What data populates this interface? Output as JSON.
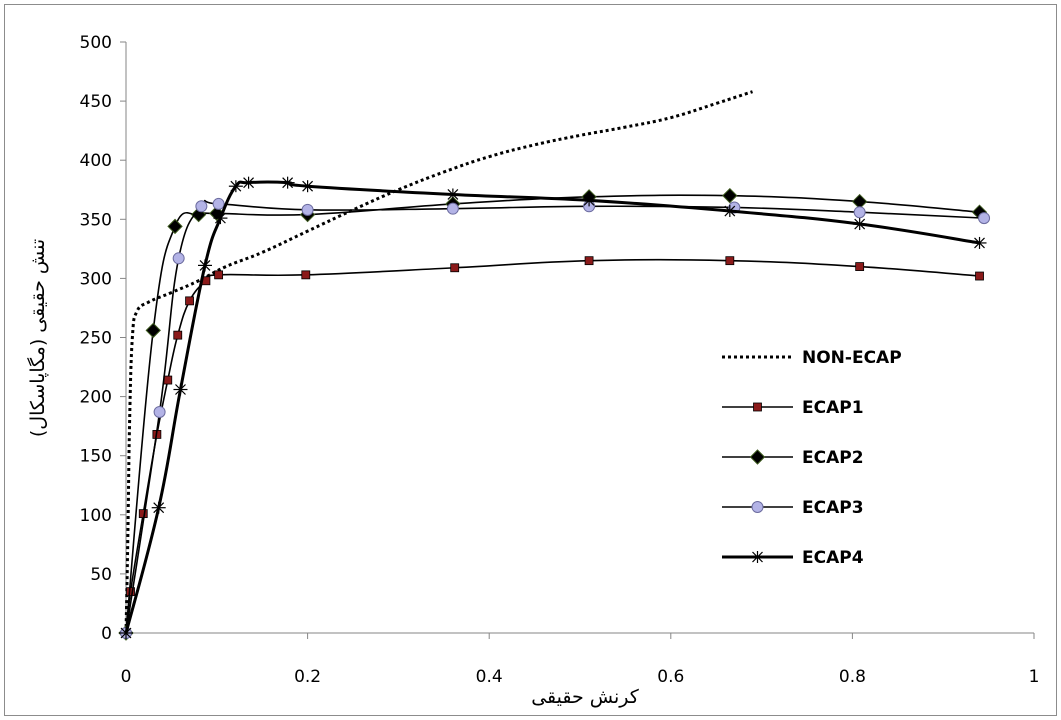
{
  "chart_data": {
    "type": "line",
    "title": "",
    "xlabel": "کرنش حقیقی",
    "ylabel": "تنش حقیقی (مگاپاسکال)",
    "xlim": [
      0,
      1
    ],
    "ylim": [
      0,
      500
    ],
    "xticks": [
      "0",
      "0.2",
      "0.4",
      "0.6",
      "0.8",
      "1"
    ],
    "yticks": [
      "0",
      "50",
      "100",
      "150",
      "200",
      "250",
      "300",
      "350",
      "400",
      "450",
      "500"
    ],
    "grid": false,
    "legend_position": "right",
    "series": [
      {
        "name": "NON-ECAP",
        "color": "#000000",
        "marker": "none",
        "line": "dotted",
        "points": [
          [
            0,
            0
          ],
          [
            0.002,
            80
          ],
          [
            0.004,
            180
          ],
          [
            0.007,
            250
          ],
          [
            0.012,
            272
          ],
          [
            0.025,
            280
          ],
          [
            0.05,
            288
          ],
          [
            0.08,
            298
          ],
          [
            0.11,
            310
          ],
          [
            0.15,
            322
          ],
          [
            0.2,
            340
          ],
          [
            0.25,
            358
          ],
          [
            0.3,
            375
          ],
          [
            0.35,
            390
          ],
          [
            0.4,
            403
          ],
          [
            0.45,
            413
          ],
          [
            0.5,
            421
          ],
          [
            0.55,
            428
          ],
          [
            0.6,
            436
          ],
          [
            0.65,
            448
          ],
          [
            0.69,
            458
          ]
        ]
      },
      {
        "name": "ECAP1",
        "color": "#8b1a1a",
        "marker": "square",
        "line": "solid",
        "points": [
          [
            0,
            0
          ],
          [
            0.005,
            35
          ],
          [
            0.019,
            101
          ],
          [
            0.034,
            168
          ],
          [
            0.046,
            214
          ],
          [
            0.057,
            252
          ],
          [
            0.07,
            281
          ],
          [
            0.088,
            298
          ],
          [
            0.102,
            303
          ],
          [
            0.198,
            303
          ],
          [
            0.362,
            309
          ],
          [
            0.51,
            315
          ],
          [
            0.665,
            315
          ],
          [
            0.808,
            310
          ],
          [
            0.94,
            302
          ]
        ]
      },
      {
        "name": "ECAP2",
        "color": "#000000",
        "marker": "diamond",
        "line": "solid",
        "points": [
          [
            0,
            0
          ],
          [
            0.03,
            256
          ],
          [
            0.054,
            344
          ],
          [
            0.08,
            354
          ],
          [
            0.1,
            355
          ],
          [
            0.2,
            354
          ],
          [
            0.36,
            363
          ],
          [
            0.51,
            369
          ],
          [
            0.665,
            370
          ],
          [
            0.808,
            365
          ],
          [
            0.94,
            356
          ]
        ]
      },
      {
        "name": "ECAP3",
        "color": "#9999cc",
        "marker": "circle",
        "line": "solid",
        "points": [
          [
            0,
            0
          ],
          [
            0.037,
            187
          ],
          [
            0.058,
            317
          ],
          [
            0.083,
            361
          ],
          [
            0.102,
            363
          ],
          [
            0.2,
            358
          ],
          [
            0.36,
            359
          ],
          [
            0.51,
            361
          ],
          [
            0.67,
            360
          ],
          [
            0.808,
            356
          ],
          [
            0.945,
            351
          ]
        ]
      },
      {
        "name": "ECAP4",
        "color": "#000000",
        "marker": "star",
        "line": "solid-thick",
        "points": [
          [
            0,
            0
          ],
          [
            0.036,
            106
          ],
          [
            0.06,
            206
          ],
          [
            0.087,
            311
          ],
          [
            0.104,
            351
          ],
          [
            0.121,
            378
          ],
          [
            0.135,
            381
          ],
          [
            0.178,
            381
          ],
          [
            0.2,
            378
          ],
          [
            0.36,
            371
          ],
          [
            0.51,
            366
          ],
          [
            0.665,
            357
          ],
          [
            0.808,
            346
          ],
          [
            0.94,
            330
          ]
        ]
      }
    ]
  }
}
